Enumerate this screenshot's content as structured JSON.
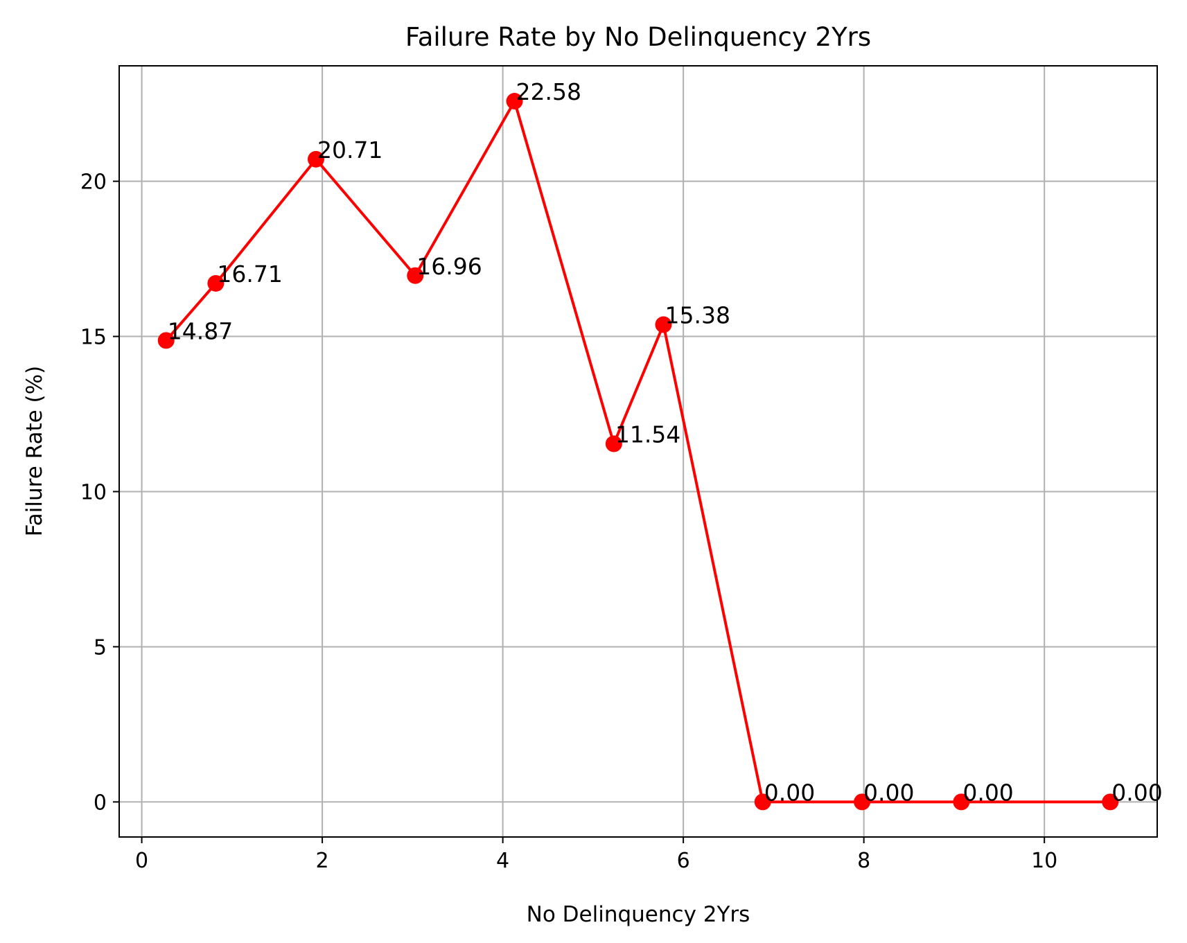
{
  "chart_data": {
    "type": "line",
    "title": "Failure Rate by No Delinquency 2Yrs",
    "xlabel": "No Delinquency 2Yrs",
    "ylabel": "Failure Rate (%)",
    "xlim": [
      -0.25,
      11.25
    ],
    "ylim": [
      -1.13,
      23.72
    ],
    "xticks": [
      0,
      2,
      4,
      6,
      8,
      10
    ],
    "yticks": [
      0,
      5,
      10,
      15,
      20
    ],
    "grid": true,
    "series": [
      {
        "color": "#ff0000",
        "marker": "circle",
        "points": [
          {
            "x": 0.27,
            "y": 14.87,
            "label": "14.87"
          },
          {
            "x": 0.82,
            "y": 16.71,
            "label": "16.71"
          },
          {
            "x": 1.93,
            "y": 20.71,
            "label": "20.71"
          },
          {
            "x": 3.03,
            "y": 16.96,
            "label": "16.96"
          },
          {
            "x": 4.13,
            "y": 22.58,
            "label": "22.58"
          },
          {
            "x": 5.23,
            "y": 11.54,
            "label": "11.54"
          },
          {
            "x": 5.78,
            "y": 15.38,
            "label": "15.38"
          },
          {
            "x": 6.88,
            "y": 0.0,
            "label": "0.00"
          },
          {
            "x": 7.98,
            "y": 0.0,
            "label": "0.00"
          },
          {
            "x": 9.08,
            "y": 0.0,
            "label": "0.00"
          },
          {
            "x": 10.73,
            "y": 0.0,
            "label": "0.00"
          }
        ]
      }
    ]
  }
}
